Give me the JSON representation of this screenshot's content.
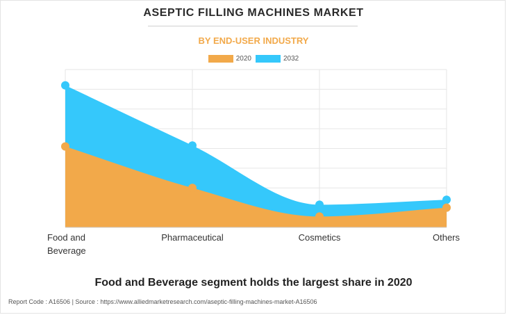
{
  "title": "ASEPTIC FILLING MACHINES MARKET",
  "subtitle": "BY END-USER INDUSTRY",
  "footer": "Food and Beverage segment holds the largest share in 2020",
  "source_line": "Report Code : A16506  |  Source : https://www.alliedmarketresearch.com/aseptic-filling-machines-market-A16506",
  "colors": {
    "s2020": "#f2a94a",
    "s2032": "#35c8fb",
    "grid": "#e6e6e6",
    "title_accent": "#f2a94a"
  },
  "chart_data": {
    "type": "area",
    "categories": [
      "Food and Beverage",
      "Pharmaceutical",
      "Cosmetics",
      "Others"
    ],
    "category_label_lines": [
      [
        "Food and",
        "Beverage"
      ],
      [
        "Pharmaceutical"
      ],
      [
        "Cosmetics"
      ],
      [
        "Others"
      ]
    ],
    "series": [
      {
        "name": "2020",
        "values": [
          4.1,
          2.0,
          0.55,
          1.0
        ]
      },
      {
        "name": "2032",
        "values": [
          7.2,
          4.15,
          1.15,
          1.4
        ]
      }
    ],
    "ylim": [
      0,
      8
    ],
    "stacked": false,
    "grid": true,
    "legend_position": "top-center",
    "xlabel": "",
    "ylabel": ""
  }
}
